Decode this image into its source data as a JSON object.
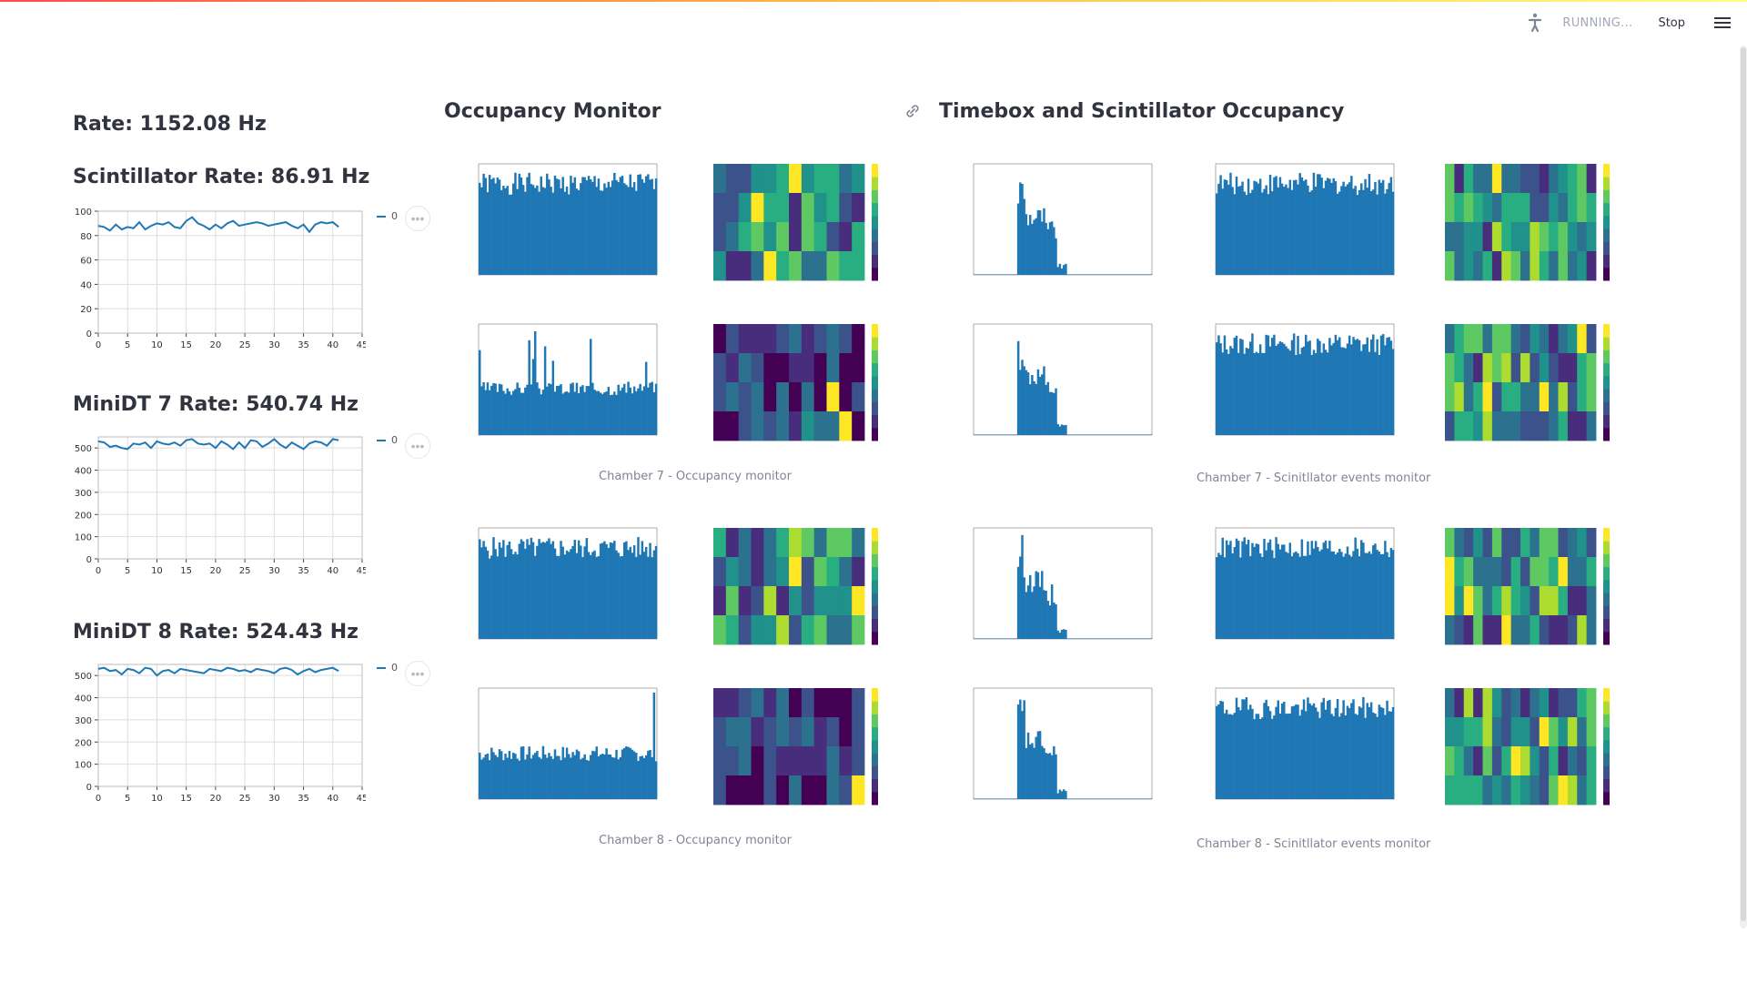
{
  "header": {
    "status": "RUNNING...",
    "stop_label": "Stop",
    "running_icon": "running-man-icon",
    "menu_icon": "hamburger-menu-icon"
  },
  "left": {
    "rate_title": "Rate: 1152.08 Hz",
    "charts": [
      {
        "title": "Scintillator Rate: 86.91 Hz",
        "legend": "0",
        "yticks": [
          "0",
          "20",
          "40",
          "60",
          "80",
          "100"
        ],
        "xticks": [
          "0",
          "5",
          "10",
          "15",
          "20",
          "25",
          "30",
          "35",
          "40",
          "45"
        ]
      },
      {
        "title": "MiniDT 7 Rate: 540.74 Hz",
        "legend": "0",
        "yticks": [
          "0",
          "100",
          "200",
          "300",
          "400",
          "500"
        ],
        "xticks": [
          "0",
          "5",
          "10",
          "15",
          "20",
          "25",
          "30",
          "35",
          "40",
          "45"
        ]
      },
      {
        "title": "MiniDT 8 Rate: 524.43 Hz",
        "legend": "0",
        "yticks": [
          "0",
          "100",
          "200",
          "300",
          "400",
          "500"
        ],
        "xticks": [
          "0",
          "5",
          "10",
          "15",
          "20",
          "25",
          "30",
          "35",
          "40",
          "45"
        ]
      }
    ]
  },
  "sections": {
    "occupancy_title": "Occupancy Monitor",
    "timebox_title": "Timebox and Scintillator Occupancy",
    "link_icon": "link-icon",
    "captions": {
      "ch7_occ": "Chamber 7 - Occupancy monitor",
      "ch7_scint": "Chamber 7 - Scinitllator events monitor",
      "ch8_occ": "Chamber 8 - Occupancy monitor",
      "ch8_scint": "Chamber 8 - Scinitllator events monitor"
    }
  },
  "colors": {
    "line": "#1f77b4",
    "bars": "#1f77b4",
    "axis": "#444444",
    "grid": "#dddddd",
    "viridis": [
      "#440154",
      "#472d7b",
      "#3b528b",
      "#2c728e",
      "#21918c",
      "#28ae80",
      "#5ec962",
      "#addc30",
      "#fde725"
    ]
  },
  "chart_data": [
    {
      "type": "line",
      "title": "Scintillator Rate: 86.91 Hz",
      "xlim": [
        0,
        45
      ],
      "ylim": [
        0,
        100
      ],
      "series": [
        {
          "name": "0",
          "x": [
            0,
            1,
            2,
            3,
            4,
            5,
            6,
            7,
            8,
            9,
            10,
            11,
            12,
            13,
            14,
            15,
            16,
            17,
            18,
            19,
            20,
            21,
            22,
            23,
            24,
            25,
            26,
            27,
            28,
            29,
            30,
            31,
            32,
            33,
            34,
            35,
            36,
            37,
            38,
            39,
            40,
            41
          ],
          "y": [
            88,
            87,
            84,
            89,
            85,
            87,
            86,
            91,
            85,
            88,
            90,
            89,
            91,
            87,
            86,
            92,
            95,
            90,
            88,
            85,
            89,
            86,
            90,
            92,
            88,
            89,
            90,
            91,
            90,
            88,
            89,
            90,
            91,
            88,
            86,
            89,
            83,
            89,
            91,
            90,
            91,
            87
          ]
        }
      ]
    },
    {
      "type": "line",
      "title": "MiniDT 7 Rate: 540.74 Hz",
      "xlim": [
        0,
        45
      ],
      "ylim": [
        0,
        550
      ],
      "series": [
        {
          "name": "0",
          "x": [
            0,
            1,
            2,
            3,
            4,
            5,
            6,
            7,
            8,
            9,
            10,
            11,
            12,
            13,
            14,
            15,
            16,
            17,
            18,
            19,
            20,
            21,
            22,
            23,
            24,
            25,
            26,
            27,
            28,
            29,
            30,
            31,
            32,
            33,
            34,
            35,
            36,
            37,
            38,
            39,
            40,
            41
          ],
          "y": [
            530,
            525,
            505,
            510,
            500,
            495,
            520,
            515,
            525,
            500,
            530,
            520,
            515,
            525,
            510,
            535,
            540,
            520,
            515,
            520,
            500,
            530,
            515,
            495,
            525,
            500,
            535,
            530,
            505,
            520,
            540,
            515,
            500,
            525,
            510,
            495,
            520,
            530,
            525,
            510,
            540,
            535
          ]
        }
      ]
    },
    {
      "type": "line",
      "title": "MiniDT 8 Rate: 524.43 Hz",
      "xlim": [
        0,
        45
      ],
      "ylim": [
        0,
        550
      ],
      "series": [
        {
          "name": "0",
          "x": [
            0,
            1,
            2,
            3,
            4,
            5,
            6,
            7,
            8,
            9,
            10,
            11,
            12,
            13,
            14,
            15,
            16,
            17,
            18,
            19,
            20,
            21,
            22,
            23,
            24,
            25,
            26,
            27,
            28,
            29,
            30,
            31,
            32,
            33,
            34,
            35,
            36,
            37,
            38,
            39,
            40,
            41
          ],
          "y": [
            530,
            535,
            520,
            525,
            505,
            530,
            525,
            510,
            535,
            530,
            500,
            520,
            525,
            510,
            530,
            525,
            520,
            515,
            510,
            530,
            525,
            520,
            535,
            530,
            520,
            525,
            515,
            530,
            525,
            520,
            510,
            530,
            535,
            525,
            505,
            520,
            530,
            515,
            525,
            530,
            535,
            520
          ]
        }
      ]
    }
  ]
}
